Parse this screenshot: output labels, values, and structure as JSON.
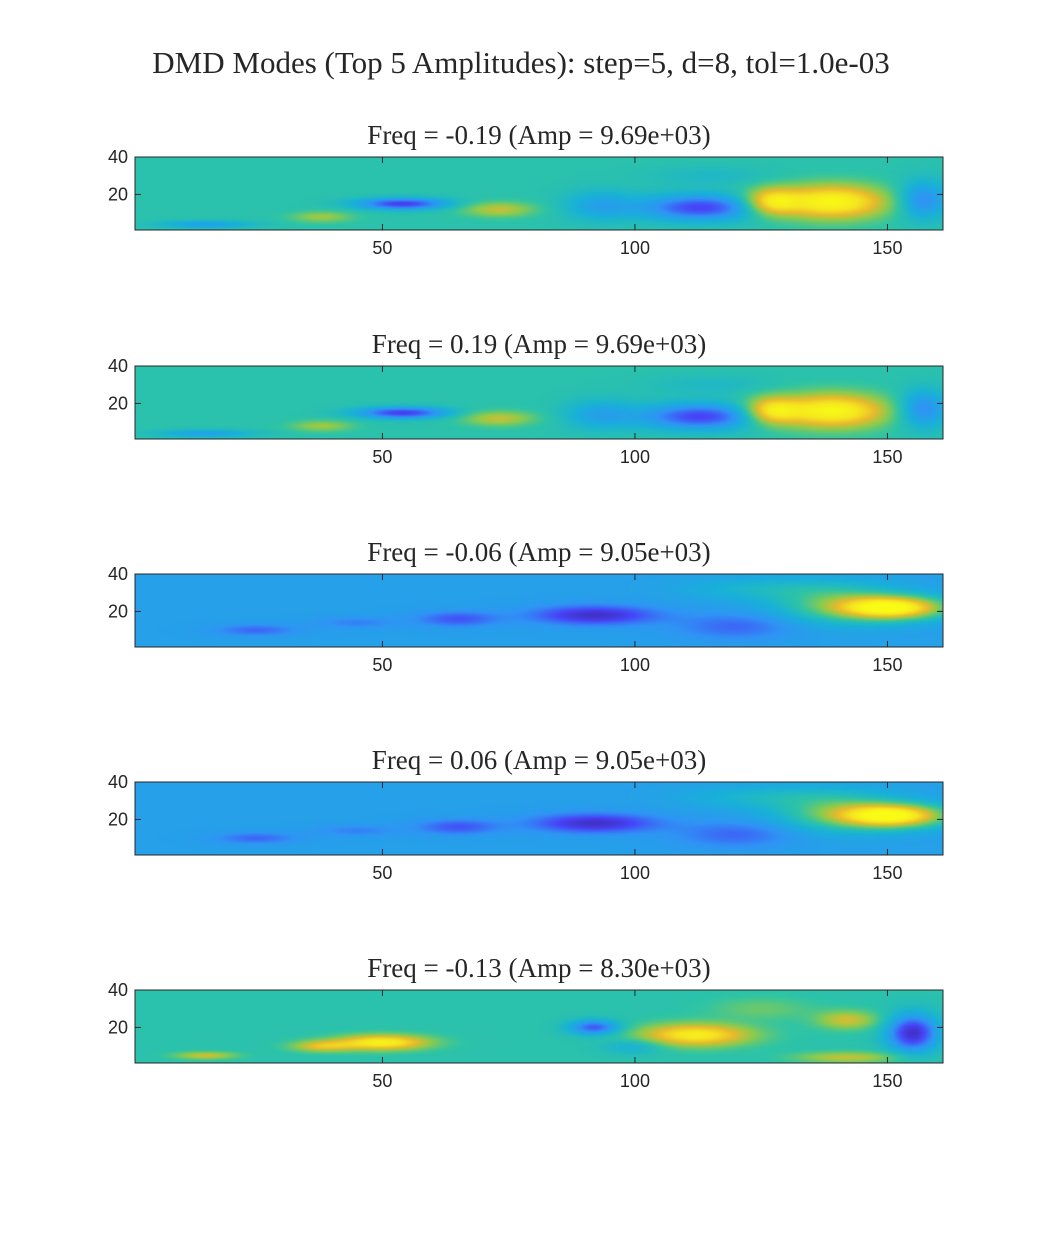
{
  "figure_title": "DMD Modes (Top 5 Amplitudes): step=5, d=8, tol=1.0e-03",
  "colors": {
    "background": "#ffffff",
    "axis": "#262626",
    "colormap": [
      "#3e26a8",
      "#4743f8",
      "#2f94f5",
      "#18b1d8",
      "#2ec4a5",
      "#8ccb4d",
      "#e9b92b",
      "#f5e51f",
      "#f9fb15"
    ]
  },
  "chart_data": [
    {
      "type": "heatmap",
      "title": "Freq = -0.19 (Amp = 9.69e+03)",
      "xlim": [
        1,
        161
      ],
      "ylim": [
        1,
        40
      ],
      "xticks": [
        50,
        100,
        150
      ],
      "xticklabels": [
        "50",
        "100",
        "150"
      ],
      "yticks": [
        20,
        40
      ],
      "yticklabels": [
        "20",
        "40"
      ],
      "background": 0.48,
      "features": [
        {
          "x": 139,
          "y": 16,
          "sx": 11,
          "sy": 9,
          "v": 0.98
        },
        {
          "x": 127,
          "y": 16,
          "sx": 5,
          "sy": 7,
          "v": 0.85
        },
        {
          "x": 113,
          "y": 13,
          "sx": 12,
          "sy": 7,
          "v": 0.12
        },
        {
          "x": 157,
          "y": 17,
          "sx": 5,
          "sy": 10,
          "v": 0.22
        },
        {
          "x": 54,
          "y": 15,
          "sx": 9,
          "sy": 3,
          "v": 0.1
        },
        {
          "x": 73,
          "y": 12,
          "sx": 7,
          "sy": 4,
          "v": 0.7
        },
        {
          "x": 93,
          "y": 14,
          "sx": 7,
          "sy": 8,
          "v": 0.32
        },
        {
          "x": 38,
          "y": 8,
          "sx": 6,
          "sy": 3,
          "v": 0.65
        },
        {
          "x": 15,
          "y": 4,
          "sx": 9,
          "sy": 2,
          "v": 0.3
        },
        {
          "x": 115,
          "y": 30,
          "sx": 12,
          "sy": 5,
          "v": 0.42
        }
      ]
    },
    {
      "type": "heatmap",
      "title": "Freq = 0.19 (Amp = 9.69e+03)",
      "xlim": [
        1,
        161
      ],
      "ylim": [
        1,
        40
      ],
      "xticks": [
        50,
        100,
        150
      ],
      "xticklabels": [
        "50",
        "100",
        "150"
      ],
      "yticks": [
        20,
        40
      ],
      "yticklabels": [
        "20",
        "40"
      ],
      "background": 0.48,
      "features": [
        {
          "x": 139,
          "y": 16,
          "sx": 11,
          "sy": 9,
          "v": 0.98
        },
        {
          "x": 127,
          "y": 16,
          "sx": 5,
          "sy": 7,
          "v": 0.85
        },
        {
          "x": 113,
          "y": 13,
          "sx": 12,
          "sy": 7,
          "v": 0.12
        },
        {
          "x": 157,
          "y": 17,
          "sx": 5,
          "sy": 10,
          "v": 0.22
        },
        {
          "x": 54,
          "y": 15,
          "sx": 9,
          "sy": 3,
          "v": 0.1
        },
        {
          "x": 73,
          "y": 12,
          "sx": 7,
          "sy": 4,
          "v": 0.7
        },
        {
          "x": 93,
          "y": 14,
          "sx": 7,
          "sy": 8,
          "v": 0.32
        },
        {
          "x": 38,
          "y": 8,
          "sx": 6,
          "sy": 3,
          "v": 0.65
        },
        {
          "x": 15,
          "y": 4,
          "sx": 9,
          "sy": 2,
          "v": 0.3
        },
        {
          "x": 115,
          "y": 30,
          "sx": 12,
          "sy": 5,
          "v": 0.42
        }
      ]
    },
    {
      "type": "heatmap",
      "title": "Freq = -0.06 (Amp = 9.05e+03)",
      "xlim": [
        1,
        161
      ],
      "ylim": [
        1,
        40
      ],
      "xticks": [
        50,
        100,
        150
      ],
      "xticklabels": [
        "50",
        "100",
        "150"
      ],
      "yticks": [
        20,
        40
      ],
      "yticklabels": [
        "20",
        "40"
      ],
      "background": 0.3,
      "features": [
        {
          "x": 151,
          "y": 22,
          "sx": 10,
          "sy": 6,
          "v": 0.98
        },
        {
          "x": 140,
          "y": 24,
          "sx": 12,
          "sy": 10,
          "v": 0.55
        },
        {
          "x": 92,
          "y": 18,
          "sx": 12,
          "sy": 5,
          "v": 0.05
        },
        {
          "x": 65,
          "y": 16,
          "sx": 8,
          "sy": 4,
          "v": 0.15
        },
        {
          "x": 120,
          "y": 12,
          "sx": 12,
          "sy": 7,
          "v": 0.18
        },
        {
          "x": 25,
          "y": 10,
          "sx": 8,
          "sy": 3,
          "v": 0.18
        },
        {
          "x": 45,
          "y": 14,
          "sx": 8,
          "sy": 3,
          "v": 0.22
        },
        {
          "x": 125,
          "y": 32,
          "sx": 15,
          "sy": 6,
          "v": 0.4
        }
      ]
    },
    {
      "type": "heatmap",
      "title": "Freq = 0.06 (Amp = 9.05e+03)",
      "xlim": [
        1,
        161
      ],
      "ylim": [
        1,
        40
      ],
      "xticks": [
        50,
        100,
        150
      ],
      "xticklabels": [
        "50",
        "100",
        "150"
      ],
      "yticks": [
        20,
        40
      ],
      "yticklabels": [
        "20",
        "40"
      ],
      "background": 0.3,
      "features": [
        {
          "x": 151,
          "y": 22,
          "sx": 10,
          "sy": 6,
          "v": 0.98
        },
        {
          "x": 140,
          "y": 24,
          "sx": 12,
          "sy": 10,
          "v": 0.55
        },
        {
          "x": 92,
          "y": 18,
          "sx": 12,
          "sy": 5,
          "v": 0.05
        },
        {
          "x": 65,
          "y": 16,
          "sx": 8,
          "sy": 4,
          "v": 0.15
        },
        {
          "x": 120,
          "y": 12,
          "sx": 12,
          "sy": 7,
          "v": 0.18
        },
        {
          "x": 25,
          "y": 10,
          "sx": 8,
          "sy": 3,
          "v": 0.18
        },
        {
          "x": 45,
          "y": 14,
          "sx": 8,
          "sy": 3,
          "v": 0.22
        },
        {
          "x": 125,
          "y": 32,
          "sx": 15,
          "sy": 6,
          "v": 0.4
        }
      ]
    },
    {
      "type": "heatmap",
      "title": "Freq = -0.13 (Amp = 8.30e+03)",
      "xlim": [
        1,
        161
      ],
      "ylim": [
        1,
        40
      ],
      "xticks": [
        50,
        100,
        150
      ],
      "xticklabels": [
        "50",
        "100",
        "150"
      ],
      "yticks": [
        20,
        40
      ],
      "yticklabels": [
        "20",
        "40"
      ],
      "background": 0.48,
      "features": [
        {
          "x": 50,
          "y": 12,
          "sx": 9,
          "sy": 4,
          "v": 0.95
        },
        {
          "x": 38,
          "y": 10,
          "sx": 6,
          "sy": 3,
          "v": 0.75
        },
        {
          "x": 112,
          "y": 16,
          "sx": 11,
          "sy": 6,
          "v": 0.92
        },
        {
          "x": 92,
          "y": 20,
          "sx": 5,
          "sy": 4,
          "v": 0.15
        },
        {
          "x": 155,
          "y": 17,
          "sx": 5,
          "sy": 10,
          "v": 0.05
        },
        {
          "x": 142,
          "y": 24,
          "sx": 6,
          "sy": 5,
          "v": 0.72
        },
        {
          "x": 142,
          "y": 4,
          "sx": 10,
          "sy": 3,
          "v": 0.7
        },
        {
          "x": 125,
          "y": 30,
          "sx": 10,
          "sy": 6,
          "v": 0.58
        },
        {
          "x": 15,
          "y": 5,
          "sx": 6,
          "sy": 2,
          "v": 0.72
        },
        {
          "x": 100,
          "y": 10,
          "sx": 6,
          "sy": 4,
          "v": 0.35
        }
      ]
    }
  ]
}
